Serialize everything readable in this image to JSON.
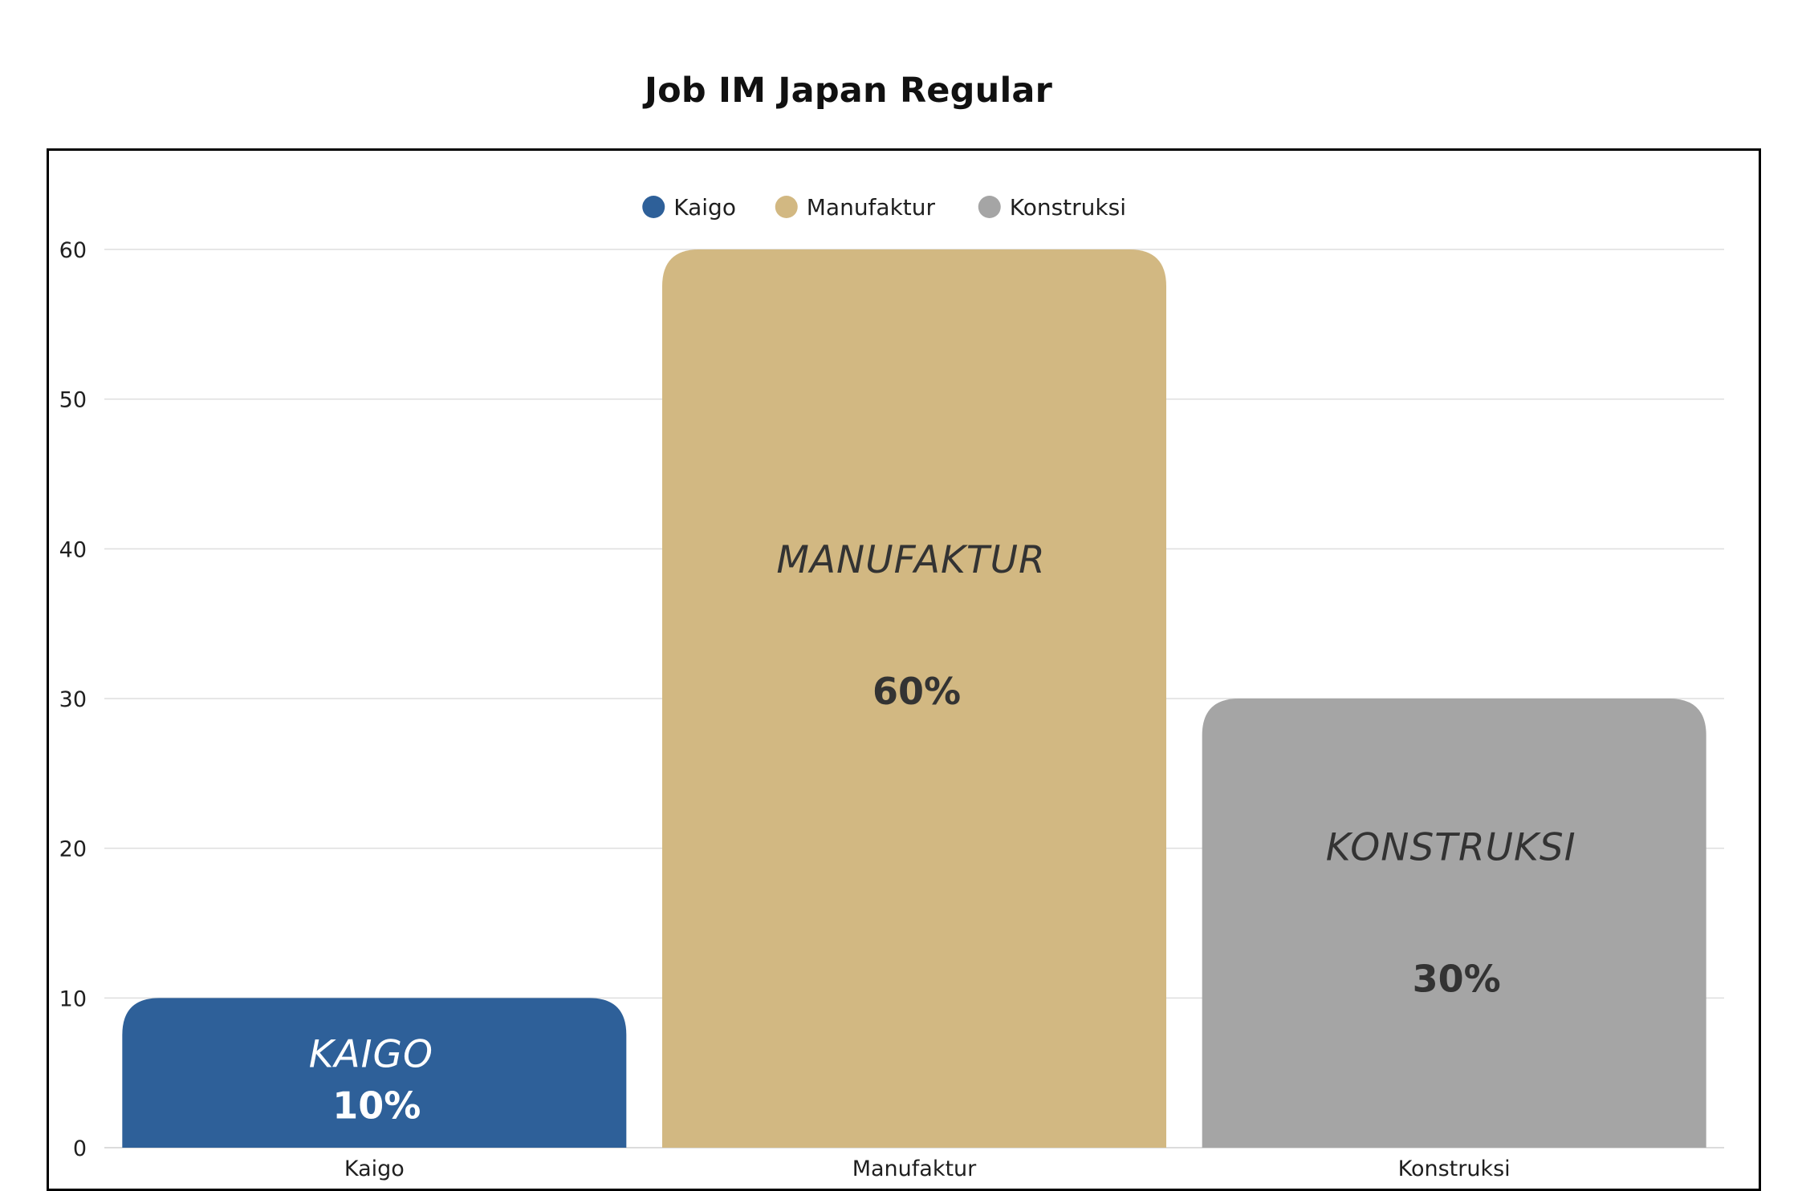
{
  "chart_data": {
    "type": "bar",
    "title": "Job IM Japan Regular",
    "categories": [
      "Kaigo",
      "Manufaktur",
      "Konstruksi"
    ],
    "values": [
      10,
      60,
      30
    ],
    "bar_names": [
      "KAIGO",
      "MANUFAKTUR",
      "KONSTRUKSI"
    ],
    "data_labels": [
      "10%",
      "60%",
      "30%"
    ],
    "colors": [
      "#2e6099",
      "#d2b882",
      "#a5a5a5"
    ],
    "bar_label_colors": [
      "#ffffff",
      "#333333",
      "#333333"
    ],
    "legend": {
      "position": "top",
      "entries": [
        "Kaigo",
        "Manufaktur",
        "Konstruksi"
      ]
    },
    "ylim": [
      0,
      60
    ],
    "yticks": [
      0,
      10,
      20,
      30,
      40,
      50,
      60
    ],
    "grid": true,
    "xlabel": "",
    "ylabel": ""
  }
}
